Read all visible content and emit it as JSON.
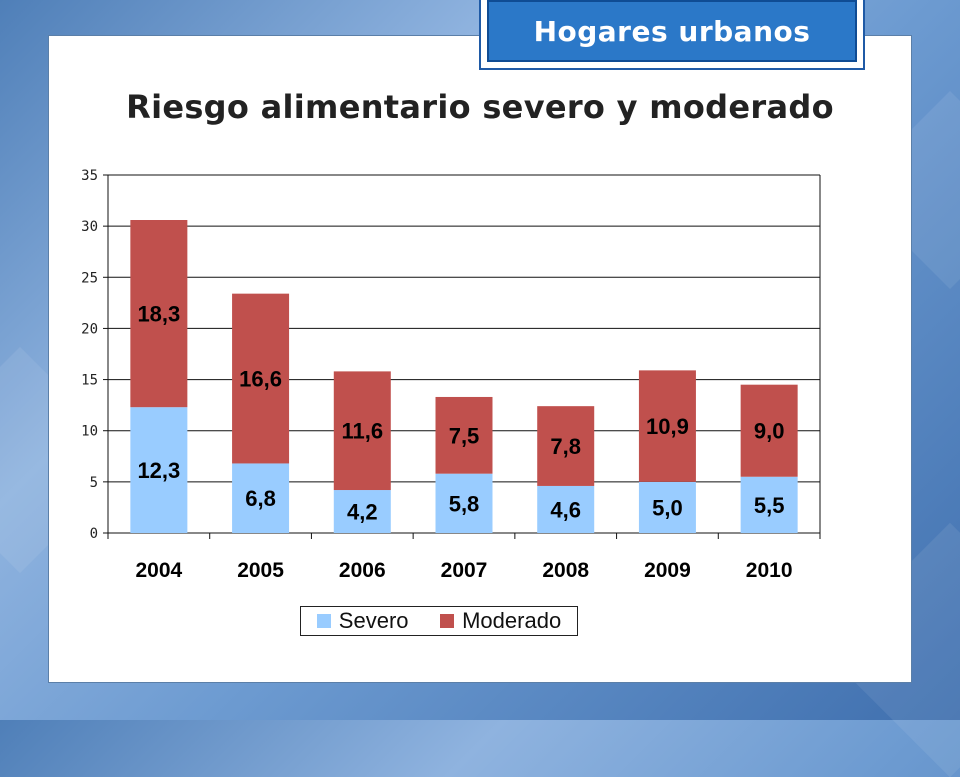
{
  "header": {
    "tag_label": "Hogares urbanos"
  },
  "chart_data": {
    "type": "bar",
    "stacked": true,
    "title": "Riesgo alimentario severo y moderado",
    "categories": [
      "2004",
      "2005",
      "2006",
      "2007",
      "2008",
      "2009",
      "2010"
    ],
    "series": [
      {
        "name": "Severo",
        "color": "#99ccff",
        "values": [
          12.3,
          6.8,
          4.2,
          5.8,
          4.6,
          5.0,
          5.5
        ],
        "labels": [
          "12,3",
          "6,8",
          "4,2",
          "5,8",
          "4,6",
          "5,0",
          "5,5"
        ]
      },
      {
        "name": "Moderado",
        "color": "#c0504d",
        "values": [
          18.3,
          16.6,
          11.6,
          7.5,
          7.8,
          10.9,
          9.0
        ],
        "labels": [
          "18,3",
          "16,6",
          "11,6",
          "7,5",
          "7,8",
          "10,9",
          "9,0"
        ]
      }
    ],
    "ylim": [
      0,
      35
    ],
    "yticks": [
      0,
      5,
      10,
      15,
      20,
      25,
      30,
      35
    ],
    "grid": true,
    "legend": "bottom"
  }
}
